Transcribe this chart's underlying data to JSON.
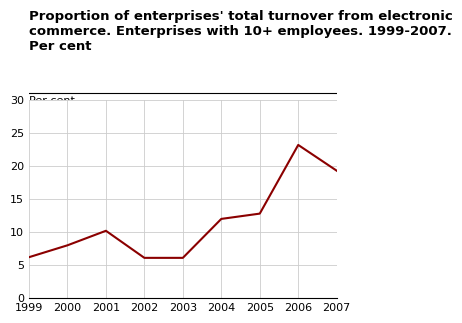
{
  "title_line1": "Proportion of enterprises' total turnover from electronic",
  "title_line2": "commerce. Enterprises with 10+ employees. 1999-2007.",
  "title_line3": "Per cent",
  "axis_label": "Per cent",
  "years": [
    1999,
    2000,
    2001,
    2002,
    2003,
    2004,
    2005,
    2006,
    2007
  ],
  "values": [
    6.2,
    8.0,
    10.2,
    6.1,
    6.1,
    12.0,
    12.8,
    23.2,
    19.3
  ],
  "line_color": "#8B0000",
  "line_width": 1.5,
  "ylim": [
    0,
    30
  ],
  "yticks": [
    0,
    5,
    10,
    15,
    20,
    25,
    30
  ],
  "background_color": "#ffffff",
  "grid_color": "#cccccc",
  "title_fontsize": 9.5,
  "axis_label_fontsize": 8,
  "tick_fontsize": 8
}
